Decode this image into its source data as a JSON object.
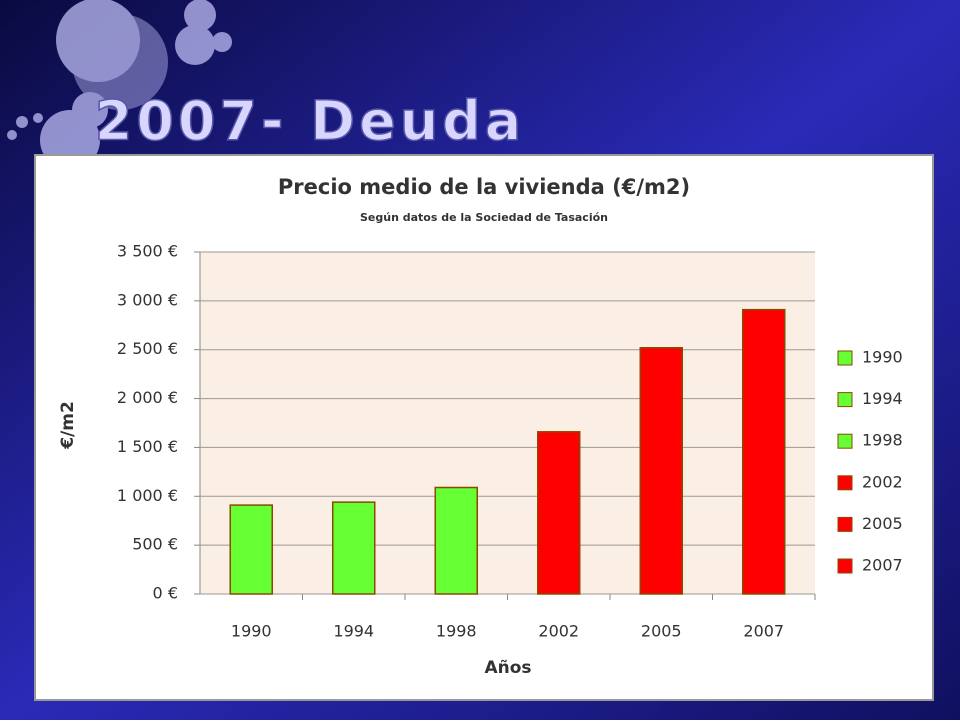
{
  "slide_title": "2007- Deuda",
  "chart_data": {
    "type": "bar",
    "title": "Precio medio de la vivienda (€/m2)",
    "subtitle": "Según datos de la Sociedad de Tasación",
    "x_label": "Años",
    "y_label": "€/m2",
    "categories": [
      "1990",
      "1994",
      "1998",
      "2002",
      "2005",
      "2007"
    ],
    "values": [
      910,
      940,
      1090,
      1660,
      2520,
      2910
    ],
    "colors": [
      "#66ff33",
      "#66ff33",
      "#66ff33",
      "#ff0000",
      "#ff0000",
      "#ff0000"
    ],
    "ylim": [
      0,
      3500
    ],
    "yticks": [
      {
        "value": 0,
        "label": "0 €"
      },
      {
        "value": 500,
        "label": "500 €"
      },
      {
        "value": 1000,
        "label": "1 000 €"
      },
      {
        "value": 1500,
        "label": "1 500 €"
      },
      {
        "value": 2000,
        "label": "2 000 €"
      },
      {
        "value": 2500,
        "label": "2 500 €"
      },
      {
        "value": 3000,
        "label": "3 000 €"
      },
      {
        "value": 3500,
        "label": "3 500 €"
      }
    ],
    "grid": true,
    "legend": "right"
  }
}
